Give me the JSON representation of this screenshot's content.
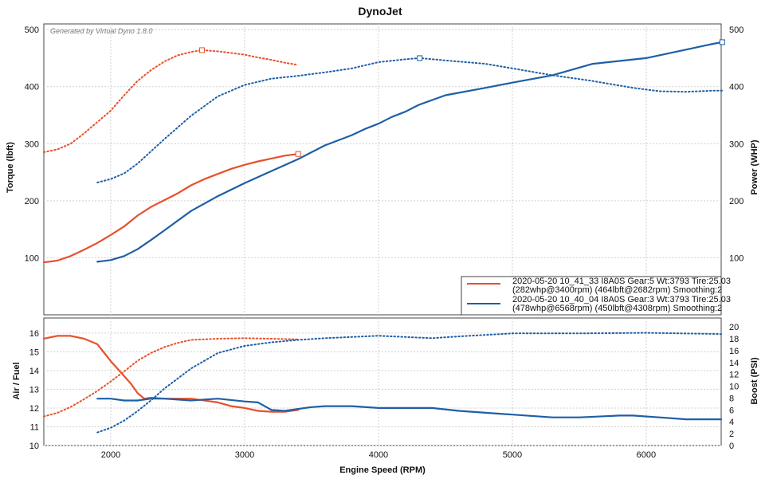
{
  "chart_data": [
    {
      "type": "line",
      "panel": "power-torque",
      "title": "DynoJet",
      "watermark": "Generated by Virtual Dyno 1.8.0",
      "xlabel": "Engine Speed (RPM)",
      "ylabel": "Torque (lbft)",
      "y2label": "Power (WHP)",
      "xlim": [
        1500,
        6560
      ],
      "ylim": [
        0,
        510
      ],
      "y2lim": [
        0,
        510
      ],
      "x_ticks": [
        "2000",
        "3000",
        "4000",
        "5000",
        "6000"
      ],
      "y_ticks": [
        "100",
        "200",
        "300",
        "400",
        "500"
      ],
      "y2_ticks": [
        "100",
        "200",
        "300",
        "400",
        "500"
      ],
      "grid": true,
      "legend_position": "bottom-right",
      "legend": [
        {
          "line1": "2020-05-20 10_41_33 I8A0S Gear:5 Wt:3793 Tire:25.03",
          "line2": "(282whp@3400rpm) (464lbft@2682rpm) Smoothing:2",
          "color": "#e8502a"
        },
        {
          "line1": "2020-05-20 10_40_04 I8A0S Gear:3 Wt:3793 Tire:25.03",
          "line2": "(478whp@6568rpm) (450lbft@4308rpm) Smoothing:2",
          "color": "#1f5fa6"
        }
      ],
      "series": [
        {
          "run": 1,
          "quantity": "power",
          "style": "solid",
          "color": "#e8502a",
          "x": [
            1500,
            1600,
            1700,
            1800,
            1900,
            2000,
            2100,
            2200,
            2300,
            2400,
            2500,
            2600,
            2700,
            2800,
            2900,
            3000,
            3100,
            3200,
            3300,
            3400
          ],
          "y": [
            92,
            95,
            103,
            114,
            126,
            140,
            155,
            174,
            189,
            201,
            213,
            227,
            238,
            247,
            256,
            263,
            269,
            274,
            279,
            282
          ],
          "peak_marker": [
            3400,
            282
          ]
        },
        {
          "run": 1,
          "quantity": "torque",
          "style": "dotted",
          "color": "#e8502a",
          "x": [
            1500,
            1600,
            1700,
            1800,
            1900,
            2000,
            2100,
            2200,
            2300,
            2400,
            2500,
            2600,
            2682,
            2800,
            2900,
            3000,
            3100,
            3200,
            3300,
            3400
          ],
          "y": [
            285,
            290,
            300,
            318,
            338,
            358,
            385,
            410,
            429,
            444,
            455,
            461,
            464,
            462,
            459,
            456,
            451,
            447,
            442,
            438
          ],
          "peak_marker": [
            2682,
            464
          ]
        },
        {
          "run": 2,
          "quantity": "power",
          "style": "solid",
          "color": "#1f5fa6",
          "x": [
            1900,
            2000,
            2100,
            2200,
            2300,
            2400,
            2600,
            2800,
            3000,
            3200,
            3400,
            3600,
            3800,
            3900,
            4000,
            4100,
            4200,
            4300,
            4500,
            4800,
            5000,
            5300,
            5600,
            6000,
            6300,
            6500,
            6568
          ],
          "y": [
            93,
            96,
            103,
            115,
            131,
            148,
            182,
            208,
            231,
            252,
            273,
            297,
            315,
            326,
            335,
            347,
            356,
            368,
            385,
            398,
            407,
            420,
            440,
            450,
            465,
            475,
            478
          ],
          "peak_marker": [
            6568,
            478
          ]
        },
        {
          "run": 2,
          "quantity": "torque",
          "style": "dotted",
          "color": "#1f5fa6",
          "x": [
            1900,
            2000,
            2100,
            2200,
            2400,
            2600,
            2800,
            3000,
            3200,
            3400,
            3600,
            3800,
            4000,
            4200,
            4308,
            4500,
            4800,
            5000,
            5300,
            5600,
            5900,
            6100,
            6300,
            6500,
            6568
          ],
          "y": [
            232,
            238,
            248,
            265,
            308,
            349,
            383,
            403,
            414,
            419,
            425,
            432,
            443,
            448,
            450,
            446,
            440,
            432,
            420,
            410,
            398,
            392,
            391,
            393,
            393
          ],
          "peak_marker": [
            4308,
            450
          ]
        }
      ]
    },
    {
      "type": "line",
      "panel": "afr-boost",
      "xlabel": "Engine Speed (RPM)",
      "ylabel": "Air / Fuel",
      "y2label": "Boost (PSI)",
      "xlim": [
        1500,
        6560
      ],
      "ylim": [
        10,
        16.8
      ],
      "y2lim": [
        0,
        21.5
      ],
      "x_ticks": [
        "2000",
        "3000",
        "4000",
        "5000",
        "6000"
      ],
      "y_ticks": [
        "10",
        "11",
        "12",
        "13",
        "14",
        "15",
        "16"
      ],
      "y2_ticks": [
        "0",
        "2",
        "4",
        "6",
        "8",
        "10",
        "12",
        "14",
        "16",
        "18",
        "20"
      ],
      "grid": true,
      "series": [
        {
          "run": 1,
          "quantity": "afr",
          "axis": "left",
          "style": "solid",
          "color": "#e8502a",
          "x": [
            1500,
            1600,
            1700,
            1800,
            1900,
            2000,
            2050,
            2100,
            2150,
            2200,
            2250,
            2300,
            2400,
            2600,
            2800,
            2900,
            3000,
            3100,
            3200,
            3300,
            3400
          ],
          "y": [
            15.7,
            15.85,
            15.85,
            15.7,
            15.4,
            14.5,
            14.1,
            13.7,
            13.3,
            12.8,
            12.5,
            12.55,
            12.5,
            12.5,
            12.3,
            12.1,
            12.0,
            11.85,
            11.8,
            11.8,
            11.9
          ]
        },
        {
          "run": 1,
          "quantity": "boost",
          "axis": "right",
          "style": "dotted",
          "color": "#e8502a",
          "x": [
            1500,
            1600,
            1700,
            1800,
            1900,
            2000,
            2100,
            2200,
            2300,
            2400,
            2500,
            2600,
            2800,
            3000,
            3200,
            3400
          ],
          "y": [
            4.9,
            5.5,
            6.5,
            7.8,
            9.2,
            10.8,
            12.5,
            14.3,
            15.6,
            16.6,
            17.3,
            17.8,
            18.0,
            18.1,
            18.0,
            17.9
          ]
        },
        {
          "run": 2,
          "quantity": "afr",
          "axis": "left",
          "style": "solid",
          "color": "#1f5fa6",
          "x": [
            1900,
            2000,
            2100,
            2200,
            2300,
            2400,
            2600,
            2800,
            3000,
            3100,
            3200,
            3300,
            3400,
            3500,
            3600,
            3800,
            4000,
            4200,
            4400,
            4600,
            5000,
            5300,
            5500,
            5800,
            5900,
            6100,
            6300,
            6560
          ],
          "y": [
            12.5,
            12.5,
            12.4,
            12.4,
            12.5,
            12.5,
            12.4,
            12.5,
            12.35,
            12.3,
            11.9,
            11.85,
            11.95,
            12.05,
            12.1,
            12.1,
            12.0,
            12.0,
            12.0,
            11.85,
            11.65,
            11.5,
            11.5,
            11.6,
            11.6,
            11.5,
            11.4,
            11.4
          ]
        },
        {
          "run": 2,
          "quantity": "boost",
          "axis": "right",
          "style": "dotted",
          "color": "#1f5fa6",
          "x": [
            1900,
            2000,
            2100,
            2200,
            2300,
            2400,
            2600,
            2800,
            3000,
            3200,
            3400,
            3600,
            4000,
            4200,
            4400,
            4600,
            5000,
            5500,
            6000,
            6560
          ],
          "y": [
            2.2,
            3.0,
            4.2,
            5.8,
            7.6,
            9.6,
            13.0,
            15.6,
            16.8,
            17.4,
            17.8,
            18.1,
            18.5,
            18.3,
            18.1,
            18.4,
            18.9,
            18.9,
            19.0,
            18.8
          ]
        }
      ]
    }
  ]
}
